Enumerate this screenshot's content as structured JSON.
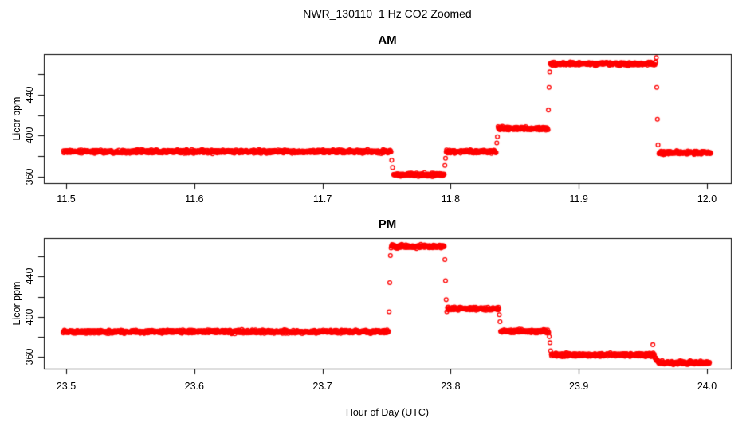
{
  "title": "NWR_130110  1 Hz CO2 Zoomed",
  "chart_data": {
    "type": "scatter",
    "title": "NWR_130110  1 Hz CO2 Zoomed",
    "xlabel": "Hour of Day (UTC)",
    "marker": "open-circle",
    "marker_color": "#FF0000",
    "axis_color": "#000000",
    "background_color": "#FFFFFF",
    "sample_rate_hz": 1,
    "noise_ppm": 0.9,
    "panels": [
      {
        "title": "AM",
        "ylabel": "Licor ppm",
        "xlim": [
          11.483,
          12.019
        ],
        "ylim": [
          354,
          479
        ],
        "grid": false,
        "xticks": [
          {
            "value": 11.5,
            "label": "11.5"
          },
          {
            "value": 11.6,
            "label": "11.6"
          },
          {
            "value": 11.7,
            "label": "11.7"
          },
          {
            "value": 11.8,
            "label": "11.8"
          },
          {
            "value": 11.9,
            "label": "11.9"
          },
          {
            "value": 12.0,
            "label": "12.0"
          }
        ],
        "yticks": [
          {
            "value": 360,
            "label": "360"
          },
          {
            "value": 380,
            "label": ""
          },
          {
            "value": 400,
            "label": "400"
          },
          {
            "value": 420,
            "label": ""
          },
          {
            "value": 440,
            "label": "440"
          },
          {
            "value": 460,
            "label": ""
          }
        ],
        "segments": [
          {
            "t_start": 11.498,
            "t_end": 11.7535,
            "ppm_start": 384.5,
            "ppm_end": 384.5
          },
          {
            "t_start": 11.7555,
            "t_end": 11.795,
            "ppm_start": 362.0,
            "ppm_end": 362.0
          },
          {
            "t_start": 11.7965,
            "t_end": 11.8355,
            "ppm_start": 384.5,
            "ppm_end": 384.5
          },
          {
            "t_start": 11.837,
            "t_end": 11.876,
            "ppm_start": 407.0,
            "ppm_end": 407.0
          },
          {
            "t_start": 11.8778,
            "t_end": 11.96,
            "ppm_start": 470.0,
            "ppm_end": 470.0
          },
          {
            "t_start": 11.9625,
            "t_end": 12.003,
            "ppm_start": 383.5,
            "ppm_end": 383.5
          }
        ],
        "transition_points": [
          {
            "t": 11.754,
            "ppm": 376
          },
          {
            "t": 11.7547,
            "ppm": 369
          },
          {
            "t": 11.7955,
            "ppm": 371
          },
          {
            "t": 11.796,
            "ppm": 378
          },
          {
            "t": 11.836,
            "ppm": 393
          },
          {
            "t": 11.8365,
            "ppm": 399
          },
          {
            "t": 11.8763,
            "ppm": 425
          },
          {
            "t": 11.8768,
            "ppm": 447
          },
          {
            "t": 11.8773,
            "ppm": 462
          },
          {
            "t": 11.9605,
            "ppm": 476
          },
          {
            "t": 11.9608,
            "ppm": 447
          },
          {
            "t": 11.9613,
            "ppm": 416
          },
          {
            "t": 11.9618,
            "ppm": 391
          }
        ]
      },
      {
        "title": "PM",
        "ylabel": "Licor ppm",
        "xlim": [
          23.483,
          24.019
        ],
        "ylim": [
          348,
          479
        ],
        "grid": false,
        "xticks": [
          {
            "value": 23.5,
            "label": "23.5"
          },
          {
            "value": 23.6,
            "label": "23.6"
          },
          {
            "value": 23.7,
            "label": "23.7"
          },
          {
            "value": 23.8,
            "label": "23.8"
          },
          {
            "value": 23.9,
            "label": "23.9"
          },
          {
            "value": 24.0,
            "label": "24.0"
          }
        ],
        "yticks": [
          {
            "value": 360,
            "label": "360"
          },
          {
            "value": 380,
            "label": ""
          },
          {
            "value": 400,
            "label": "400"
          },
          {
            "value": 420,
            "label": ""
          },
          {
            "value": 440,
            "label": "440"
          },
          {
            "value": 460,
            "label": ""
          }
        ],
        "segments": [
          {
            "t_start": 23.4975,
            "t_end": 23.7515,
            "ppm_start": 385.0,
            "ppm_end": 385.0
          },
          {
            "t_start": 23.7535,
            "t_end": 23.795,
            "ppm_start": 470.0,
            "ppm_end": 470.0
          },
          {
            "t_start": 23.7975,
            "t_end": 23.8375,
            "ppm_start": 408.0,
            "ppm_end": 408.0
          },
          {
            "t_start": 23.839,
            "t_end": 23.8765,
            "ppm_start": 385.5,
            "ppm_end": 385.5
          },
          {
            "t_start": 23.8785,
            "t_end": 23.9575,
            "ppm_start": 362.0,
            "ppm_end": 362.0
          },
          {
            "t_start": 23.958,
            "t_end": 23.9625,
            "ppm_start": 362.0,
            "ppm_end": 354.0
          },
          {
            "t_start": 23.9625,
            "t_end": 24.002,
            "ppm_start": 354.0,
            "ppm_end": 354.0
          }
        ],
        "transition_points": [
          {
            "t": 23.752,
            "ppm": 405
          },
          {
            "t": 23.7525,
            "ppm": 434
          },
          {
            "t": 23.753,
            "ppm": 461
          },
          {
            "t": 23.7955,
            "ppm": 457
          },
          {
            "t": 23.796,
            "ppm": 436
          },
          {
            "t": 23.7965,
            "ppm": 417
          },
          {
            "t": 23.797,
            "ppm": 405
          },
          {
            "t": 23.838,
            "ppm": 402
          },
          {
            "t": 23.8385,
            "ppm": 395
          },
          {
            "t": 23.877,
            "ppm": 380
          },
          {
            "t": 23.8775,
            "ppm": 374
          },
          {
            "t": 23.878,
            "ppm": 366
          },
          {
            "t": 23.9578,
            "ppm": 372
          }
        ]
      }
    ]
  }
}
